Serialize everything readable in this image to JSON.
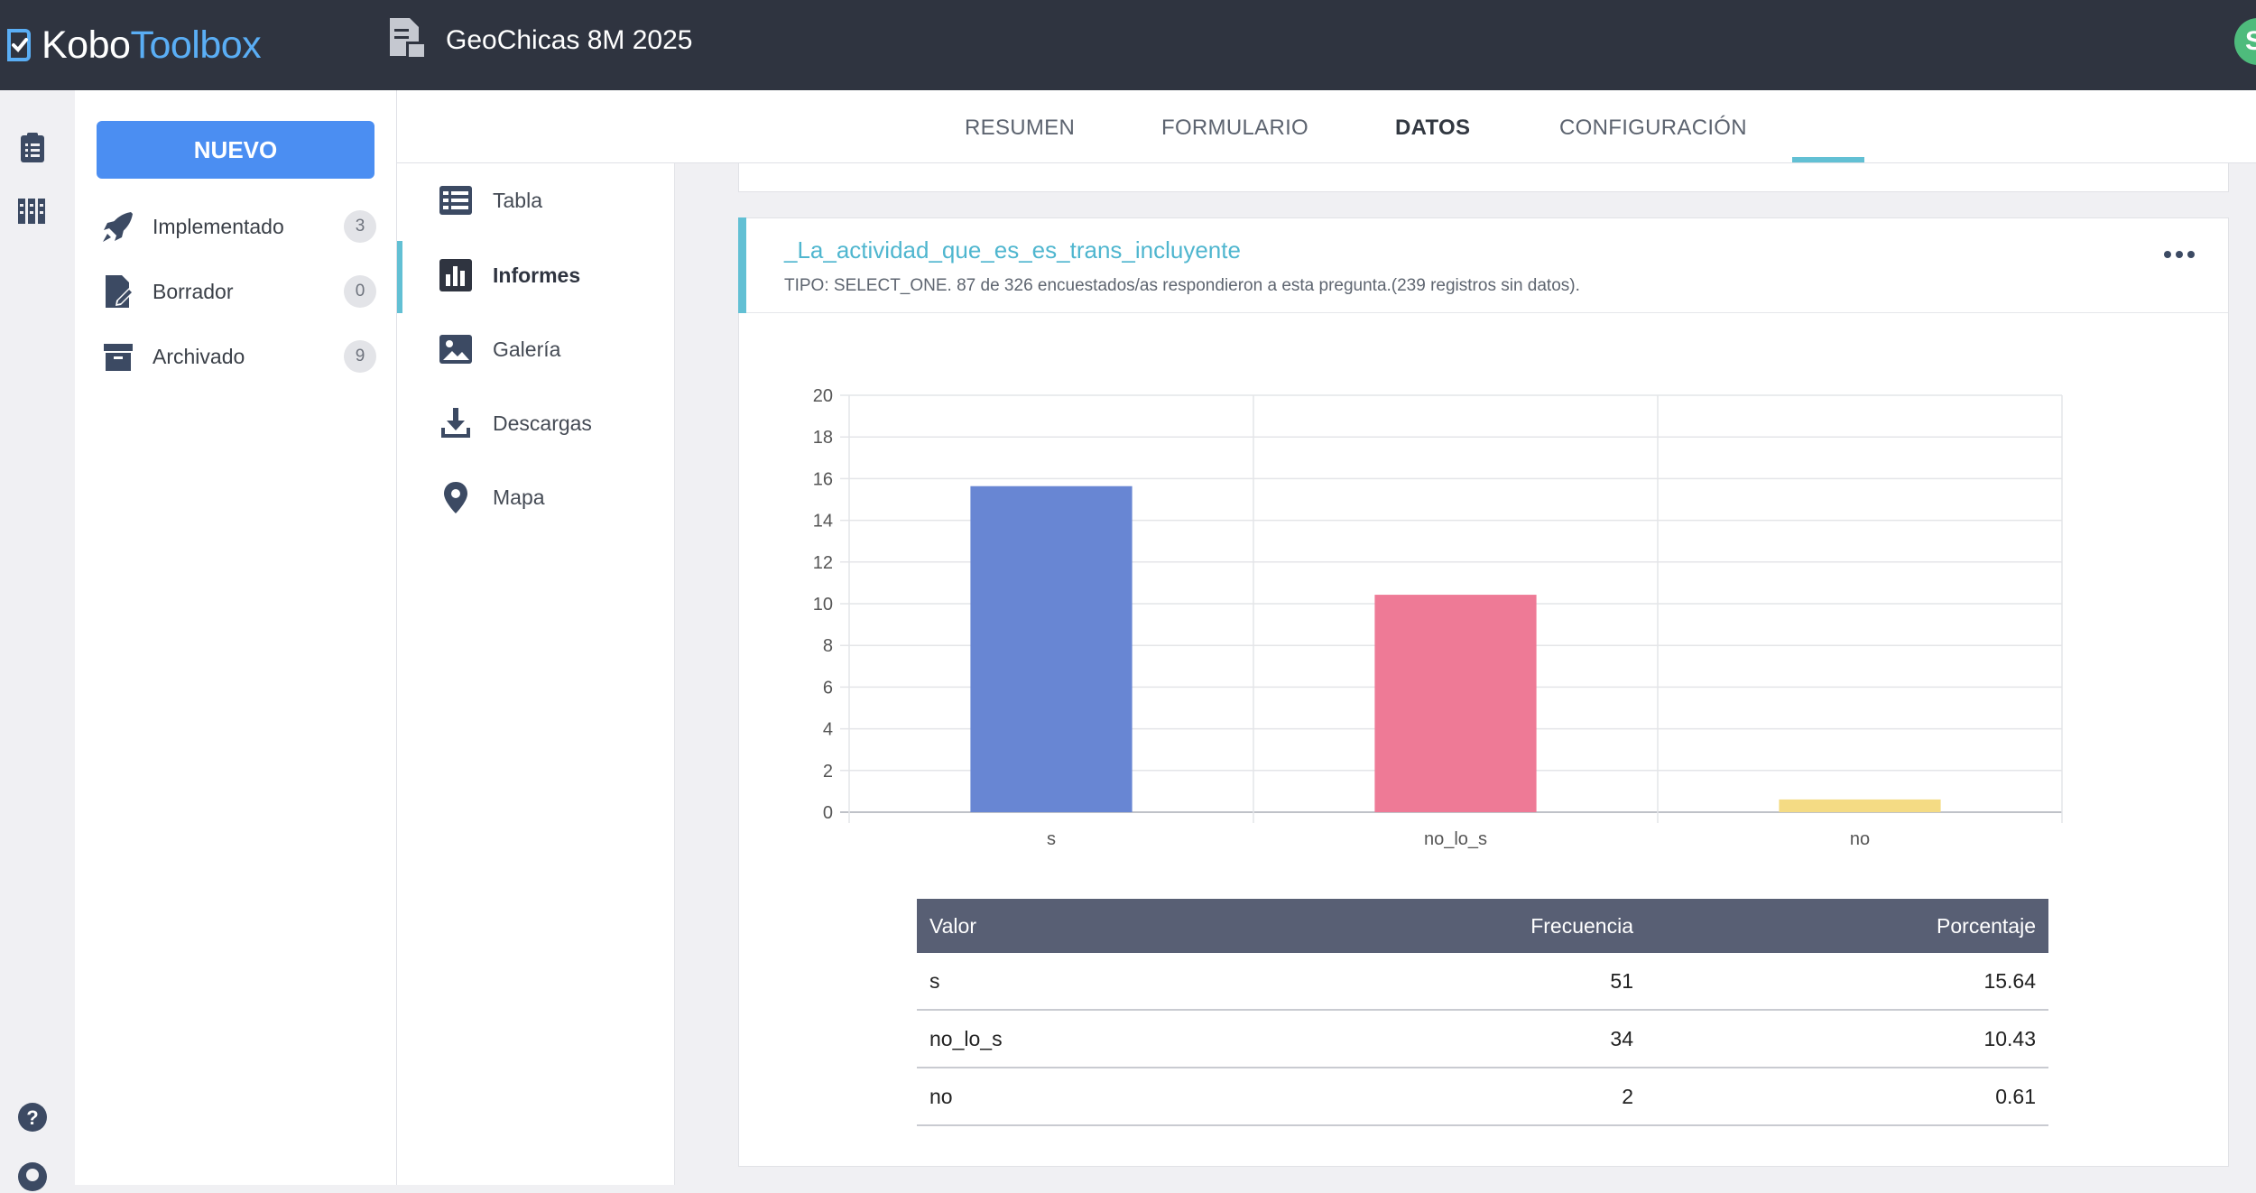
{
  "app": {
    "logo_part1": "Kobo",
    "logo_part2": "Toolbox",
    "project_title": "GeoChicas 8M 2025",
    "avatar_letter": "S"
  },
  "sidebar": {
    "new_button": "NUEVO",
    "items": [
      {
        "label": "Implementado",
        "count": "3",
        "icon": "rocket-icon"
      },
      {
        "label": "Borrador",
        "count": "0",
        "icon": "draft-icon"
      },
      {
        "label": "Archivado",
        "count": "9",
        "icon": "archive-icon"
      }
    ]
  },
  "tabs": [
    {
      "label": "RESUMEN"
    },
    {
      "label": "FORMULARIO"
    },
    {
      "label": "DATOS",
      "active": true
    },
    {
      "label": "CONFIGURACIÓN"
    }
  ],
  "subnav": [
    {
      "label": "Tabla",
      "icon": "table-icon"
    },
    {
      "label": "Informes",
      "icon": "reports-icon",
      "active": true
    },
    {
      "label": "Galería",
      "icon": "gallery-icon"
    },
    {
      "label": "Descargas",
      "icon": "download-icon"
    },
    {
      "label": "Mapa",
      "icon": "map-pin-icon"
    }
  ],
  "report": {
    "question_title": "_La_actividad_que_es_es_trans_incluyente",
    "question_meta": "TIPO: SELECT_ONE. 87 de 326 encuestados/as respondieron a esta pregunta.(239 registros sin datos).",
    "table": {
      "headers": [
        "Valor",
        "Frecuencia",
        "Porcentaje"
      ],
      "rows": [
        [
          "s",
          "51",
          "15.64"
        ],
        [
          "no_lo_s",
          "34",
          "10.43"
        ],
        [
          "no",
          "2",
          "0.61"
        ]
      ]
    }
  },
  "chart_data": {
    "type": "bar",
    "categories": [
      "s",
      "no_lo_s",
      "no"
    ],
    "values": [
      15.64,
      10.43,
      0.61
    ],
    "colors": [
      "#6886d3",
      "#ee7a96",
      "#f4db84"
    ],
    "ylim": [
      0,
      20
    ],
    "yticks": [
      0,
      2,
      4,
      6,
      8,
      10,
      12,
      14,
      16,
      18,
      20
    ],
    "grid": true
  },
  "colors": {
    "topbar": "#2f3440",
    "accent": "#62c0d4",
    "primary_button": "#4b8ef2",
    "table_header": "#585f74"
  }
}
